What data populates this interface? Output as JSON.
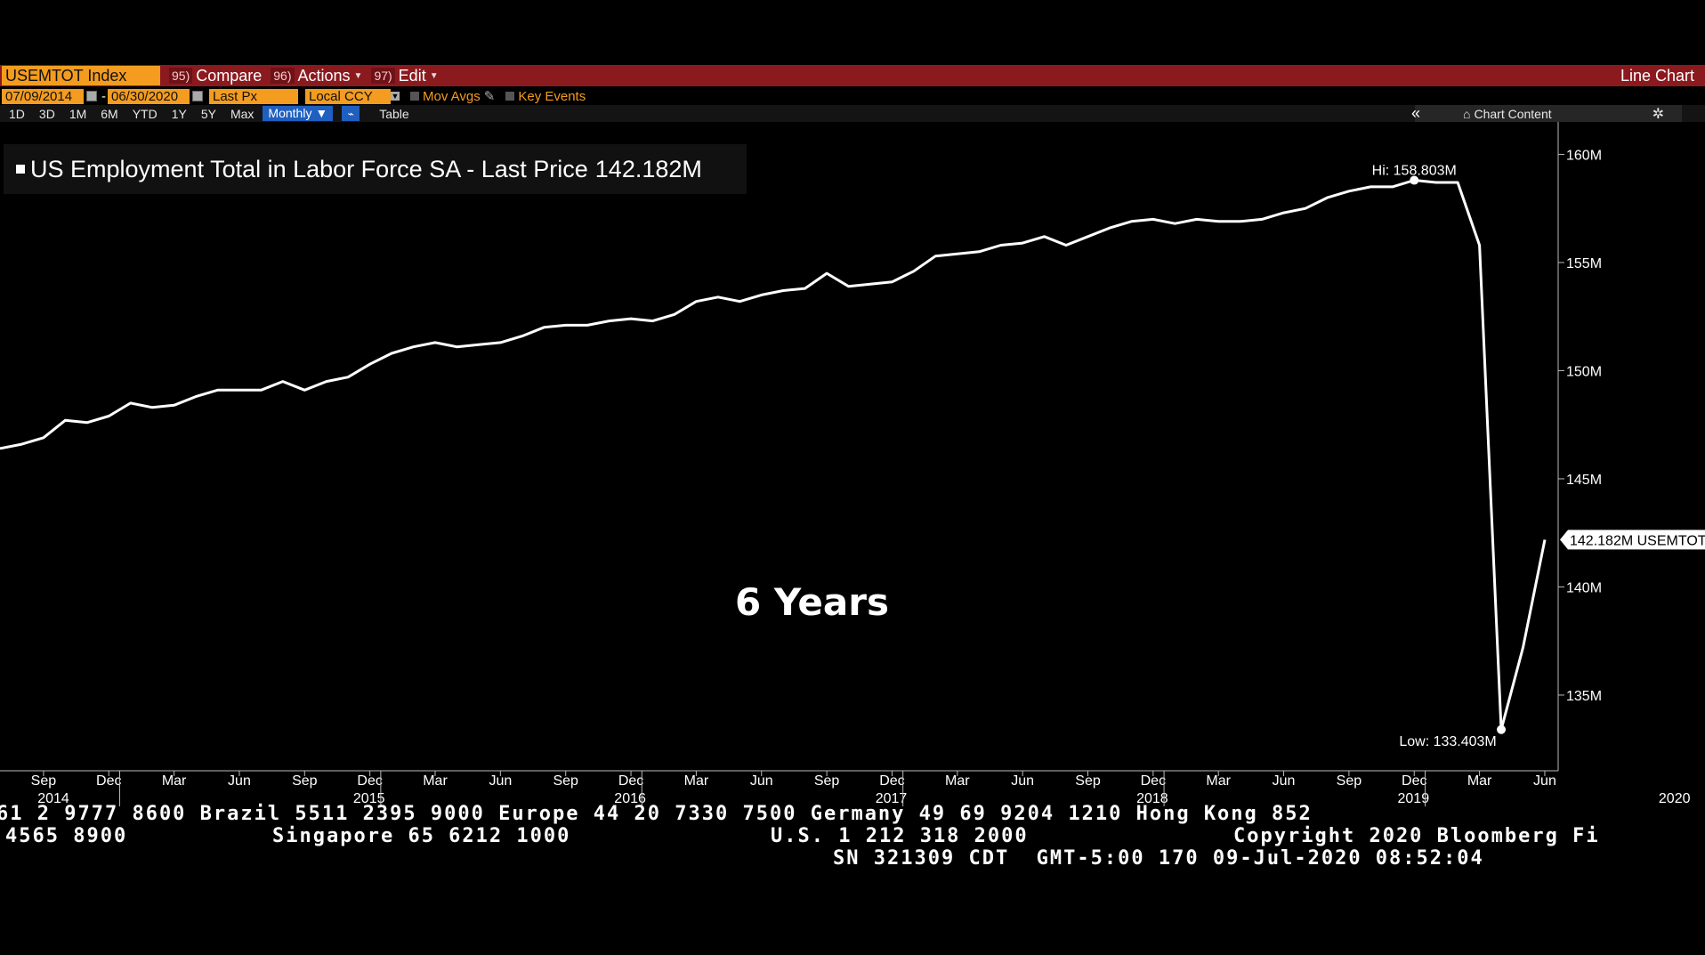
{
  "toolbar": {
    "ticker": "USEMTOT Index",
    "compare_num": "95)",
    "compare": "Compare",
    "actions_num": "96)",
    "actions": "Actions",
    "edit_num": "97)",
    "edit": "Edit",
    "view_type": "Line Chart"
  },
  "controls": {
    "start_date": "07/09/2014",
    "end_date": "06/30/2020",
    "price_field": "Last Px",
    "currency": "Local CCY",
    "mov_avgs": "Mov Avgs",
    "key_events": "Key Events",
    "periods": [
      "1D",
      "3D",
      "1M",
      "6M",
      "YTD",
      "1Y",
      "5Y",
      "Max"
    ],
    "frequency": "Monthly",
    "table": "Table",
    "chart_content": "Chart Content"
  },
  "legend": {
    "label": "US Employment Total in Labor Force SA - Last Price",
    "value": "142.182M"
  },
  "overlay": "6 Years",
  "chart_data": {
    "type": "line",
    "series": [
      {
        "name": "US Employment Total in Labor Force SA - Last Price",
        "values": [
          146.4,
          146.6,
          146.9,
          147.7,
          147.6,
          147.9,
          148.5,
          148.3,
          148.4,
          148.8,
          149.1,
          149.1,
          149.1,
          149.5,
          149.1,
          149.5,
          149.7,
          150.3,
          150.8,
          151.1,
          151.3,
          151.1,
          151.2,
          151.3,
          151.6,
          152.0,
          152.1,
          152.1,
          152.3,
          152.4,
          152.3,
          152.6,
          153.2,
          153.4,
          153.2,
          153.5,
          153.7,
          153.8,
          154.5,
          153.9,
          154.0,
          154.1,
          154.6,
          155.3,
          155.4,
          155.5,
          155.8,
          155.9,
          156.2,
          155.8,
          156.2,
          156.6,
          156.9,
          157.0,
          156.8,
          157.0,
          156.9,
          156.9,
          157.0,
          157.3,
          157.5,
          158.0,
          158.3,
          158.5,
          158.5,
          158.803,
          158.7,
          158.7,
          155.8,
          133.403,
          137.2,
          142.182
        ],
        "color": "#ffffff"
      }
    ],
    "x_start": "2014-07",
    "x_end": "2020-06",
    "frequency": "Monthly",
    "ylim": [
      131.5,
      161.5
    ],
    "yticks": [
      "135M",
      "140M",
      "145M",
      "150M",
      "155M",
      "160M"
    ],
    "ytick_values": [
      135,
      140,
      145,
      150,
      155,
      160
    ],
    "month_ticks": [
      "Sep",
      "Dec",
      "Mar",
      "Jun",
      "Sep",
      "Dec",
      "Mar",
      "Jun",
      "Sep",
      "Dec",
      "Mar",
      "Jun",
      "Sep",
      "Dec",
      "Mar",
      "Jun",
      "Sep",
      "Dec",
      "Mar",
      "Jun",
      "Sep",
      "Dec",
      "Mar",
      "Jun"
    ],
    "year_ticks": [
      "2014",
      "2015",
      "2016",
      "2017",
      "2018",
      "2019",
      "2020"
    ],
    "high": {
      "label": "Hi: 158.803M",
      "value": 158.803
    },
    "low": {
      "label": "Low: 133.403M",
      "value": 133.403
    },
    "last": {
      "label": "142.182M USEMTOT",
      "value": 142.182
    },
    "grid": false
  },
  "footer": {
    "line1": "61 2 9777 8600 Brazil 5511 2395 9000 Europe 44 20 7330 7500 Germany 49 69 9204 1210 Hong Kong 852",
    "line2a": "4565 8900",
    "line2b": "Singapore 65 6212 1000",
    "line2c": "U.S. 1 212 318 2000",
    "line2d": "Copyright 2020 Bloomberg Fi",
    "line3": "SN 321309 CDT  GMT-5:00 170 09-Jul-2020 08:52:04"
  }
}
